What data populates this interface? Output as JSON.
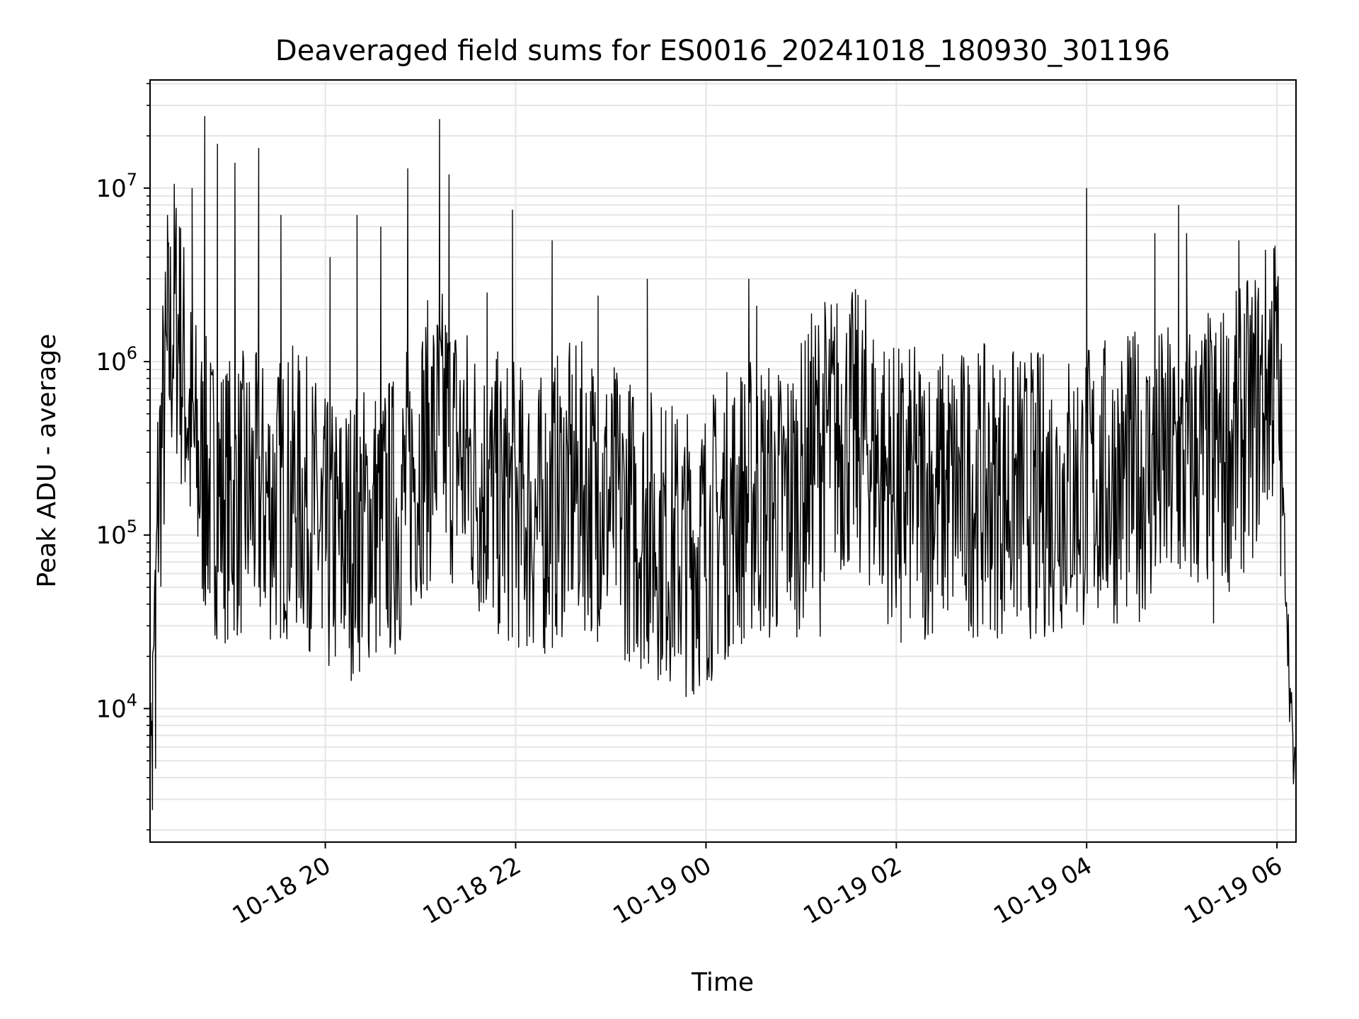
{
  "chart_data": {
    "type": "line",
    "title": "Deaveraged field sums for ES0016_20241018_180930_301196",
    "xlabel": "Time",
    "ylabel": "Peak ADU - average",
    "y_scale": "log",
    "ylim": [
      1700,
      42000000
    ],
    "xlim": [
      "2024-10-18 18:09:30",
      "2024-10-19 06:12:00"
    ],
    "grid": true,
    "line_color": "#000000",
    "grid_color": "#e5e5e5",
    "x_ticks": [
      {
        "value": "2024-10-18 20:00",
        "label": "10-18 20"
      },
      {
        "value": "2024-10-18 22:00",
        "label": "10-18 22"
      },
      {
        "value": "2024-10-19 00:00",
        "label": "10-19 00"
      },
      {
        "value": "2024-10-19 02:00",
        "label": "10-19 02"
      },
      {
        "value": "2024-10-19 04:00",
        "label": "10-19 04"
      },
      {
        "value": "2024-10-19 06:00",
        "label": "10-19 06"
      }
    ],
    "y_ticks": [
      {
        "value": 10000,
        "base": "10",
        "exp": "4"
      },
      {
        "value": 100000,
        "base": "10",
        "exp": "5"
      },
      {
        "value": 1000000,
        "base": "10",
        "exp": "6"
      },
      {
        "value": 10000000,
        "base": "10",
        "exp": "7"
      }
    ],
    "x": [
      "2024-10-18 18:09:30",
      "2024-10-18 18:12:00",
      "2024-10-18 18:15:00",
      "2024-10-18 18:20:00",
      "2024-10-18 18:25:00",
      "2024-10-18 18:30:00",
      "2024-10-18 18:35:00",
      "2024-10-18 18:40:00",
      "2024-10-18 18:45:00",
      "2024-10-18 18:50:00",
      "2024-10-18 19:00:00",
      "2024-10-18 19:10:00",
      "2024-10-18 19:20:00",
      "2024-10-18 19:30:00",
      "2024-10-18 19:40:00",
      "2024-10-18 19:50:00",
      "2024-10-18 20:00:00",
      "2024-10-18 20:15:00",
      "2024-10-18 20:30:00",
      "2024-10-18 20:45:00",
      "2024-10-18 21:00:00",
      "2024-10-18 21:15:00",
      "2024-10-18 21:30:00",
      "2024-10-18 21:45:00",
      "2024-10-18 22:00:00",
      "2024-10-18 22:15:00",
      "2024-10-18 22:30:00",
      "2024-10-18 22:45:00",
      "2024-10-18 23:00:00",
      "2024-10-18 23:15:00",
      "2024-10-18 23:30:00",
      "2024-10-18 23:45:00",
      "2024-10-19 00:00:00",
      "2024-10-19 00:15:00",
      "2024-10-19 00:30:00",
      "2024-10-19 00:45:00",
      "2024-10-19 01:00:00",
      "2024-10-19 01:10:00",
      "2024-10-19 01:20:00",
      "2024-10-19 01:30:00",
      "2024-10-19 01:40:00",
      "2024-10-19 01:50:00",
      "2024-10-19 02:00:00",
      "2024-10-19 02:30:00",
      "2024-10-19 03:00:00",
      "2024-10-19 03:30:00",
      "2024-10-19 04:00:00",
      "2024-10-19 04:30:00",
      "2024-10-19 05:00:00",
      "2024-10-19 05:30:00",
      "2024-10-19 05:45:00",
      "2024-10-19 05:55:00",
      "2024-10-19 06:00:00",
      "2024-10-19 06:03:00",
      "2024-10-19 06:06:00",
      "2024-10-19 06:09:00",
      "2024-10-19 06:12:00"
    ],
    "values": [
      5000,
      30000,
      200000,
      800000,
      2000000,
      1000000,
      400000,
      250000,
      200000,
      180000,
      160000,
      170000,
      160000,
      160000,
      180000,
      150000,
      90000,
      100000,
      120000,
      130000,
      300000,
      400000,
      250000,
      170000,
      150000,
      120000,
      180000,
      190000,
      150000,
      120000,
      100000,
      80000,
      90000,
      140000,
      170000,
      150000,
      190000,
      350000,
      380000,
      400000,
      360000,
      250000,
      180000,
      180000,
      180000,
      170000,
      190000,
      220000,
      250000,
      330000,
      480000,
      800000,
      1000000,
      200000,
      50000,
      8000,
      3000
    ],
    "spikes": [
      {
        "x": "2024-10-18 18:20:30",
        "value": 7000000
      },
      {
        "x": "2024-10-18 18:28:00",
        "value": 6000000
      },
      {
        "x": "2024-10-18 18:36:00",
        "value": 10000000
      },
      {
        "x": "2024-10-18 18:44:00",
        "value": 26000000
      },
      {
        "x": "2024-10-18 18:52:00",
        "value": 18000000
      },
      {
        "x": "2024-10-18 19:03:00",
        "value": 14000000
      },
      {
        "x": "2024-10-18 19:18:00",
        "value": 17000000
      },
      {
        "x": "2024-10-18 19:32:00",
        "value": 7000000
      },
      {
        "x": "2024-10-18 20:03:00",
        "value": 4000000
      },
      {
        "x": "2024-10-18 20:20:00",
        "value": 7000000
      },
      {
        "x": "2024-10-18 20:35:00",
        "value": 6000000
      },
      {
        "x": "2024-10-18 20:52:00",
        "value": 13000000
      },
      {
        "x": "2024-10-18 21:12:00",
        "value": 25000000
      },
      {
        "x": "2024-10-18 21:18:00",
        "value": 12000000
      },
      {
        "x": "2024-10-18 21:42:00",
        "value": 2500000
      },
      {
        "x": "2024-10-18 21:58:00",
        "value": 7500000
      },
      {
        "x": "2024-10-18 22:23:00",
        "value": 5000000
      },
      {
        "x": "2024-10-18 22:52:00",
        "value": 2400000
      },
      {
        "x": "2024-10-18 23:23:00",
        "value": 3000000
      },
      {
        "x": "2024-10-19 00:27:00",
        "value": 3000000
      },
      {
        "x": "2024-10-19 00:32:00",
        "value": 2100000
      },
      {
        "x": "2024-10-19 04:00:00",
        "value": 10000000
      },
      {
        "x": "2024-10-19 04:43:00",
        "value": 5500000
      },
      {
        "x": "2024-10-19 04:58:00",
        "value": 8000000
      },
      {
        "x": "2024-10-19 05:03:00",
        "value": 5500000
      },
      {
        "x": "2024-10-19 05:36:00",
        "value": 5000000
      },
      {
        "x": "2024-10-19 05:58:00",
        "value": 4500000
      }
    ],
    "dips": [
      {
        "x": "2024-10-18 18:11:00",
        "value": 2600
      },
      {
        "x": "2024-10-18 18:13:00",
        "value": 4500
      },
      {
        "x": "2024-10-18 19:58:00",
        "value": 29000
      },
      {
        "x": "2024-10-18 20:10:00",
        "value": 31000
      },
      {
        "x": "2024-10-18 21:50:00",
        "value": 31000
      },
      {
        "x": "2024-10-18 22:48:00",
        "value": 30000
      },
      {
        "x": "2024-10-19 01:12:00",
        "value": 26000
      },
      {
        "x": "2024-10-19 02:03:00",
        "value": 24000
      },
      {
        "x": "2024-10-19 02:18:00",
        "value": 25000
      },
      {
        "x": "2024-10-19 03:28:00",
        "value": 27000
      },
      {
        "x": "2024-10-19 05:20:00",
        "value": 31000
      }
    ]
  }
}
